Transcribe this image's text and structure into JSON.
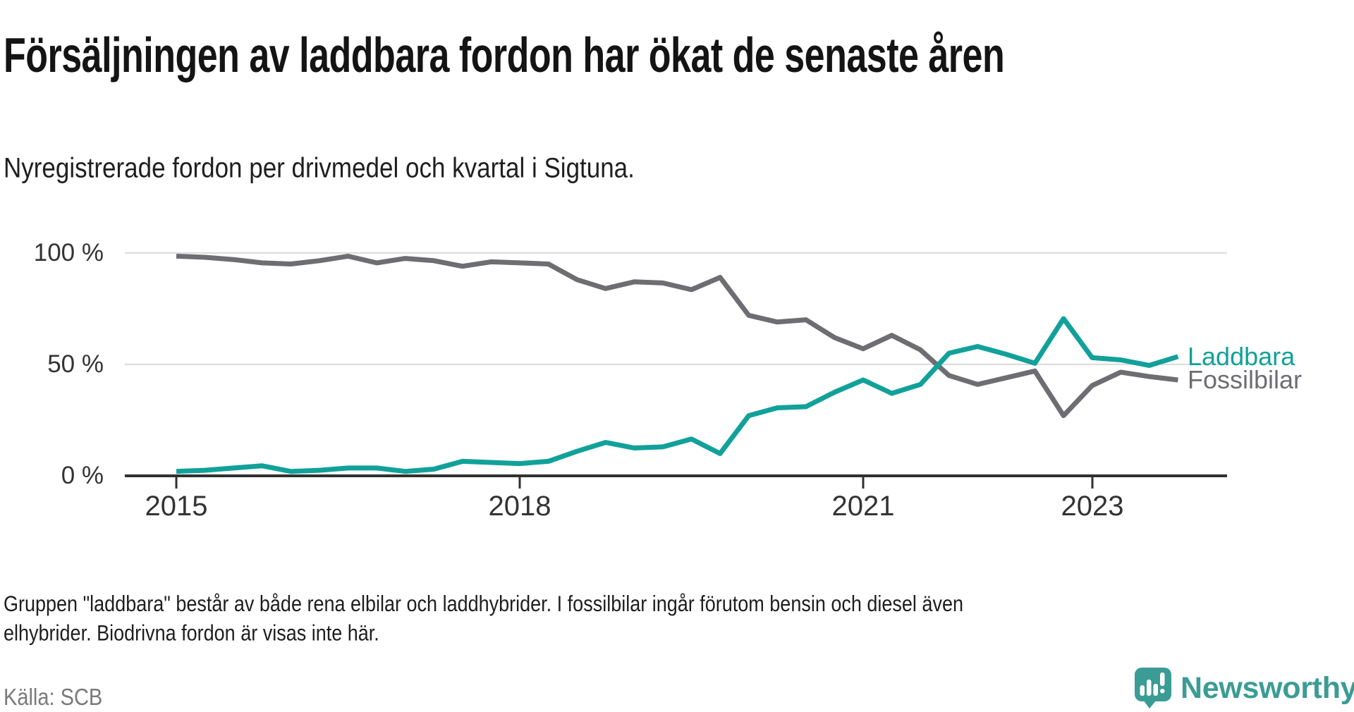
{
  "header": {
    "title": "Försäljningen av laddbara fordon har ökat de senaste åren",
    "subtitle": "Nyregistrerade fordon per drivmedel och kvartal i Sigtuna."
  },
  "chart_data": {
    "type": "line",
    "title": "Försäljningen av laddbara fordon har ökat de senaste åren",
    "subtitle": "Nyregistrerade fordon per drivmedel och kvartal i Sigtuna.",
    "xlabel": "",
    "ylabel": "",
    "y_unit": "%",
    "ylim": [
      0,
      100
    ],
    "grid": "horizontal",
    "legend_position": "line-end-labels",
    "x_tick_labels": [
      "2015",
      "2018",
      "2021",
      "2023"
    ],
    "y_tick_labels": [
      "100 %",
      "50 %",
      "0 %"
    ],
    "y_tick_values": [
      100,
      50,
      0
    ],
    "categories": [
      "2015 Q1",
      "2015 Q2",
      "2015 Q3",
      "2015 Q4",
      "2016 Q1",
      "2016 Q2",
      "2016 Q3",
      "2016 Q4",
      "2017 Q1",
      "2017 Q2",
      "2017 Q3",
      "2017 Q4",
      "2018 Q1",
      "2018 Q2",
      "2018 Q3",
      "2018 Q4",
      "2019 Q1",
      "2019 Q2",
      "2019 Q3",
      "2019 Q4",
      "2020 Q1",
      "2020 Q2",
      "2020 Q3",
      "2020 Q4",
      "2021 Q1",
      "2021 Q2",
      "2021 Q3",
      "2021 Q4",
      "2022 Q1",
      "2022 Q2",
      "2022 Q3",
      "2022 Q4",
      "2023 Q1",
      "2023 Q2",
      "2023 Q3",
      "2023 Q4"
    ],
    "series": [
      {
        "name": "Laddbara",
        "color": "#11a19a",
        "values": [
          2,
          2.5,
          3.5,
          4.5,
          2,
          2.5,
          3.5,
          3.5,
          2,
          3,
          6.5,
          6,
          5.5,
          6.5,
          11,
          15,
          12.5,
          13,
          16.5,
          10,
          27,
          30.5,
          31,
          37.5,
          43,
          37,
          41,
          55,
          58,
          54.5,
          50.5,
          70.5,
          53,
          52,
          49.5,
          53.5
        ]
      },
      {
        "name": "Fossilbilar",
        "color": "#6d6d72",
        "values": [
          98.5,
          98,
          97,
          95.5,
          95,
          96.5,
          98.5,
          95.5,
          97.5,
          96.5,
          94,
          96,
          95.5,
          95,
          88,
          84,
          87,
          86.5,
          83.5,
          89,
          72,
          69,
          70,
          62,
          57,
          63,
          56.5,
          45,
          41,
          44,
          47,
          27,
          40.5,
          46.5,
          44.5,
          43
        ]
      }
    ],
    "colors": {
      "axis": "#303030",
      "gridline": "#dadada",
      "tick_text": "#333333"
    }
  },
  "footer": {
    "note_line1": "Gruppen \"laddbara\" består av både rena elbilar och laddhybrider. I fossilbilar ingår förutom bensin och diesel även",
    "note_line2": "elhybrider. Biodrivna fordon är visas inte här.",
    "source": "Källa: SCB"
  },
  "branding": {
    "logo_text": "Newsworthy",
    "logo_color": "#3b9c95"
  }
}
